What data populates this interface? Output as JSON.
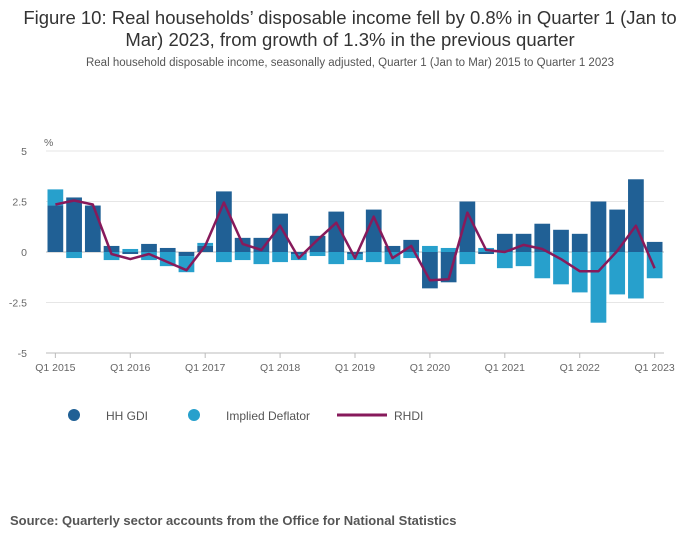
{
  "chart_data": {
    "type": "bar",
    "title": "Figure 10: Real households’ disposable income fell by 0.8% in Quarter 1 (Jan to Mar) 2023, from growth of 1.3% in the previous quarter",
    "subtitle": "Real household disposable income, seasonally adjusted, Quarter 1 (Jan to Mar) 2015 to Quarter 1 2023",
    "ylabel": "%",
    "xlabel": "",
    "ylim": [
      -5,
      5
    ],
    "yticks": [
      "5",
      "2.5",
      "0",
      "-2.5",
      "-5"
    ],
    "xtick_labels": [
      "Q1 2015",
      "Q1 2016",
      "Q1 2017",
      "Q1 2018",
      "Q1 2019",
      "Q1 2020",
      "Q1 2021",
      "Q1 2022",
      "Q1 2023"
    ],
    "stacked": true,
    "periods": 33,
    "series": [
      {
        "name": "HH GDI",
        "type": "bar",
        "color": "#206095",
        "values": [
          2.3,
          2.7,
          2.3,
          0.3,
          -0.1,
          0.4,
          0.2,
          -0.2,
          0.3,
          3.0,
          0.7,
          0.7,
          1.9,
          -0.1,
          0.8,
          2.0,
          -0.1,
          2.1,
          0.3,
          0.6,
          -1.8,
          -1.5,
          2.5,
          -0.1,
          0.9,
          0.9,
          1.4,
          1.1,
          0.9,
          2.5,
          2.1,
          3.6,
          0.5
        ]
      },
      {
        "name": "Implied Deflator",
        "type": "bar",
        "color": "#27a0cc",
        "values": [
          0.8,
          -0.3,
          0.0,
          -0.4,
          0.15,
          -0.4,
          -0.7,
          -0.8,
          0.15,
          -0.5,
          -0.4,
          -0.6,
          -0.5,
          -0.3,
          -0.2,
          -0.6,
          -0.3,
          -0.5,
          -0.6,
          -0.3,
          0.3,
          0.2,
          -0.6,
          0.2,
          -0.8,
          -0.7,
          -1.3,
          -1.6,
          -2.0,
          -3.5,
          -2.1,
          -2.3,
          -1.3
        ]
      },
      {
        "name": "RHDI",
        "type": "line",
        "color": "#871a5b",
        "values": [
          2.35,
          2.55,
          2.35,
          -0.1,
          -0.35,
          -0.1,
          -0.5,
          -0.9,
          0.3,
          2.45,
          0.4,
          0.1,
          1.3,
          -0.3,
          0.6,
          1.45,
          -0.3,
          1.75,
          -0.3,
          0.3,
          -1.4,
          -1.35,
          1.95,
          0.1,
          0.0,
          0.35,
          0.15,
          -0.35,
          -0.95,
          -0.95,
          0.05,
          1.3,
          -0.8
        ]
      }
    ]
  },
  "legend": {
    "hh_gdi": "HH GDI",
    "implied_deflator": "Implied Deflator",
    "rhdi": "RHDI"
  },
  "source": "Source: Quarterly sector accounts from the Office for National Statistics"
}
